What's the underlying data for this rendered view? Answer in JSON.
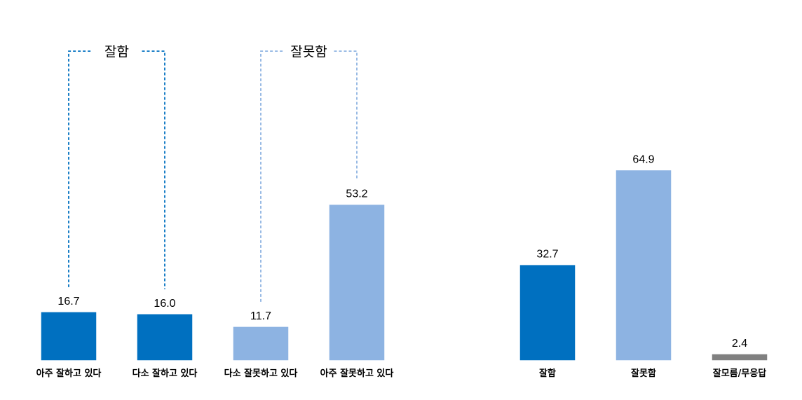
{
  "colors": {
    "dark_blue": "#0070C0",
    "light_blue": "#8DB3E2",
    "gray": "#808080",
    "bracket_dark": "#0070C0",
    "bracket_light": "#8DB3E2"
  },
  "chart_data": [
    {
      "type": "bar",
      "categories": [
        "아주 잘하고 있다",
        "다소 잘하고 있다",
        "다소 잘못하고 있다",
        "아주 잘못하고 있다"
      ],
      "values": [
        16.7,
        16.0,
        11.7,
        53.2
      ],
      "value_labels": [
        "16.7",
        "16.0",
        "11.7",
        "53.2"
      ],
      "bar_colors": [
        "#0070C0",
        "#0070C0",
        "#8DB3E2",
        "#8DB3E2"
      ],
      "groups": [
        {
          "label": "잘함",
          "members": [
            0,
            1
          ],
          "color": "#0070C0"
        },
        {
          "label": "잘못함",
          "members": [
            2,
            3
          ],
          "color": "#8DB3E2"
        }
      ],
      "grid": false
    },
    {
      "type": "bar",
      "categories": [
        "잘함",
        "잘못함",
        "잘모름/무응답"
      ],
      "values": [
        32.7,
        64.9,
        2.4
      ],
      "value_labels": [
        "32.7",
        "64.9",
        "2.4"
      ],
      "bar_colors": [
        "#0070C0",
        "#8DB3E2",
        "#808080"
      ],
      "grid": false
    }
  ]
}
